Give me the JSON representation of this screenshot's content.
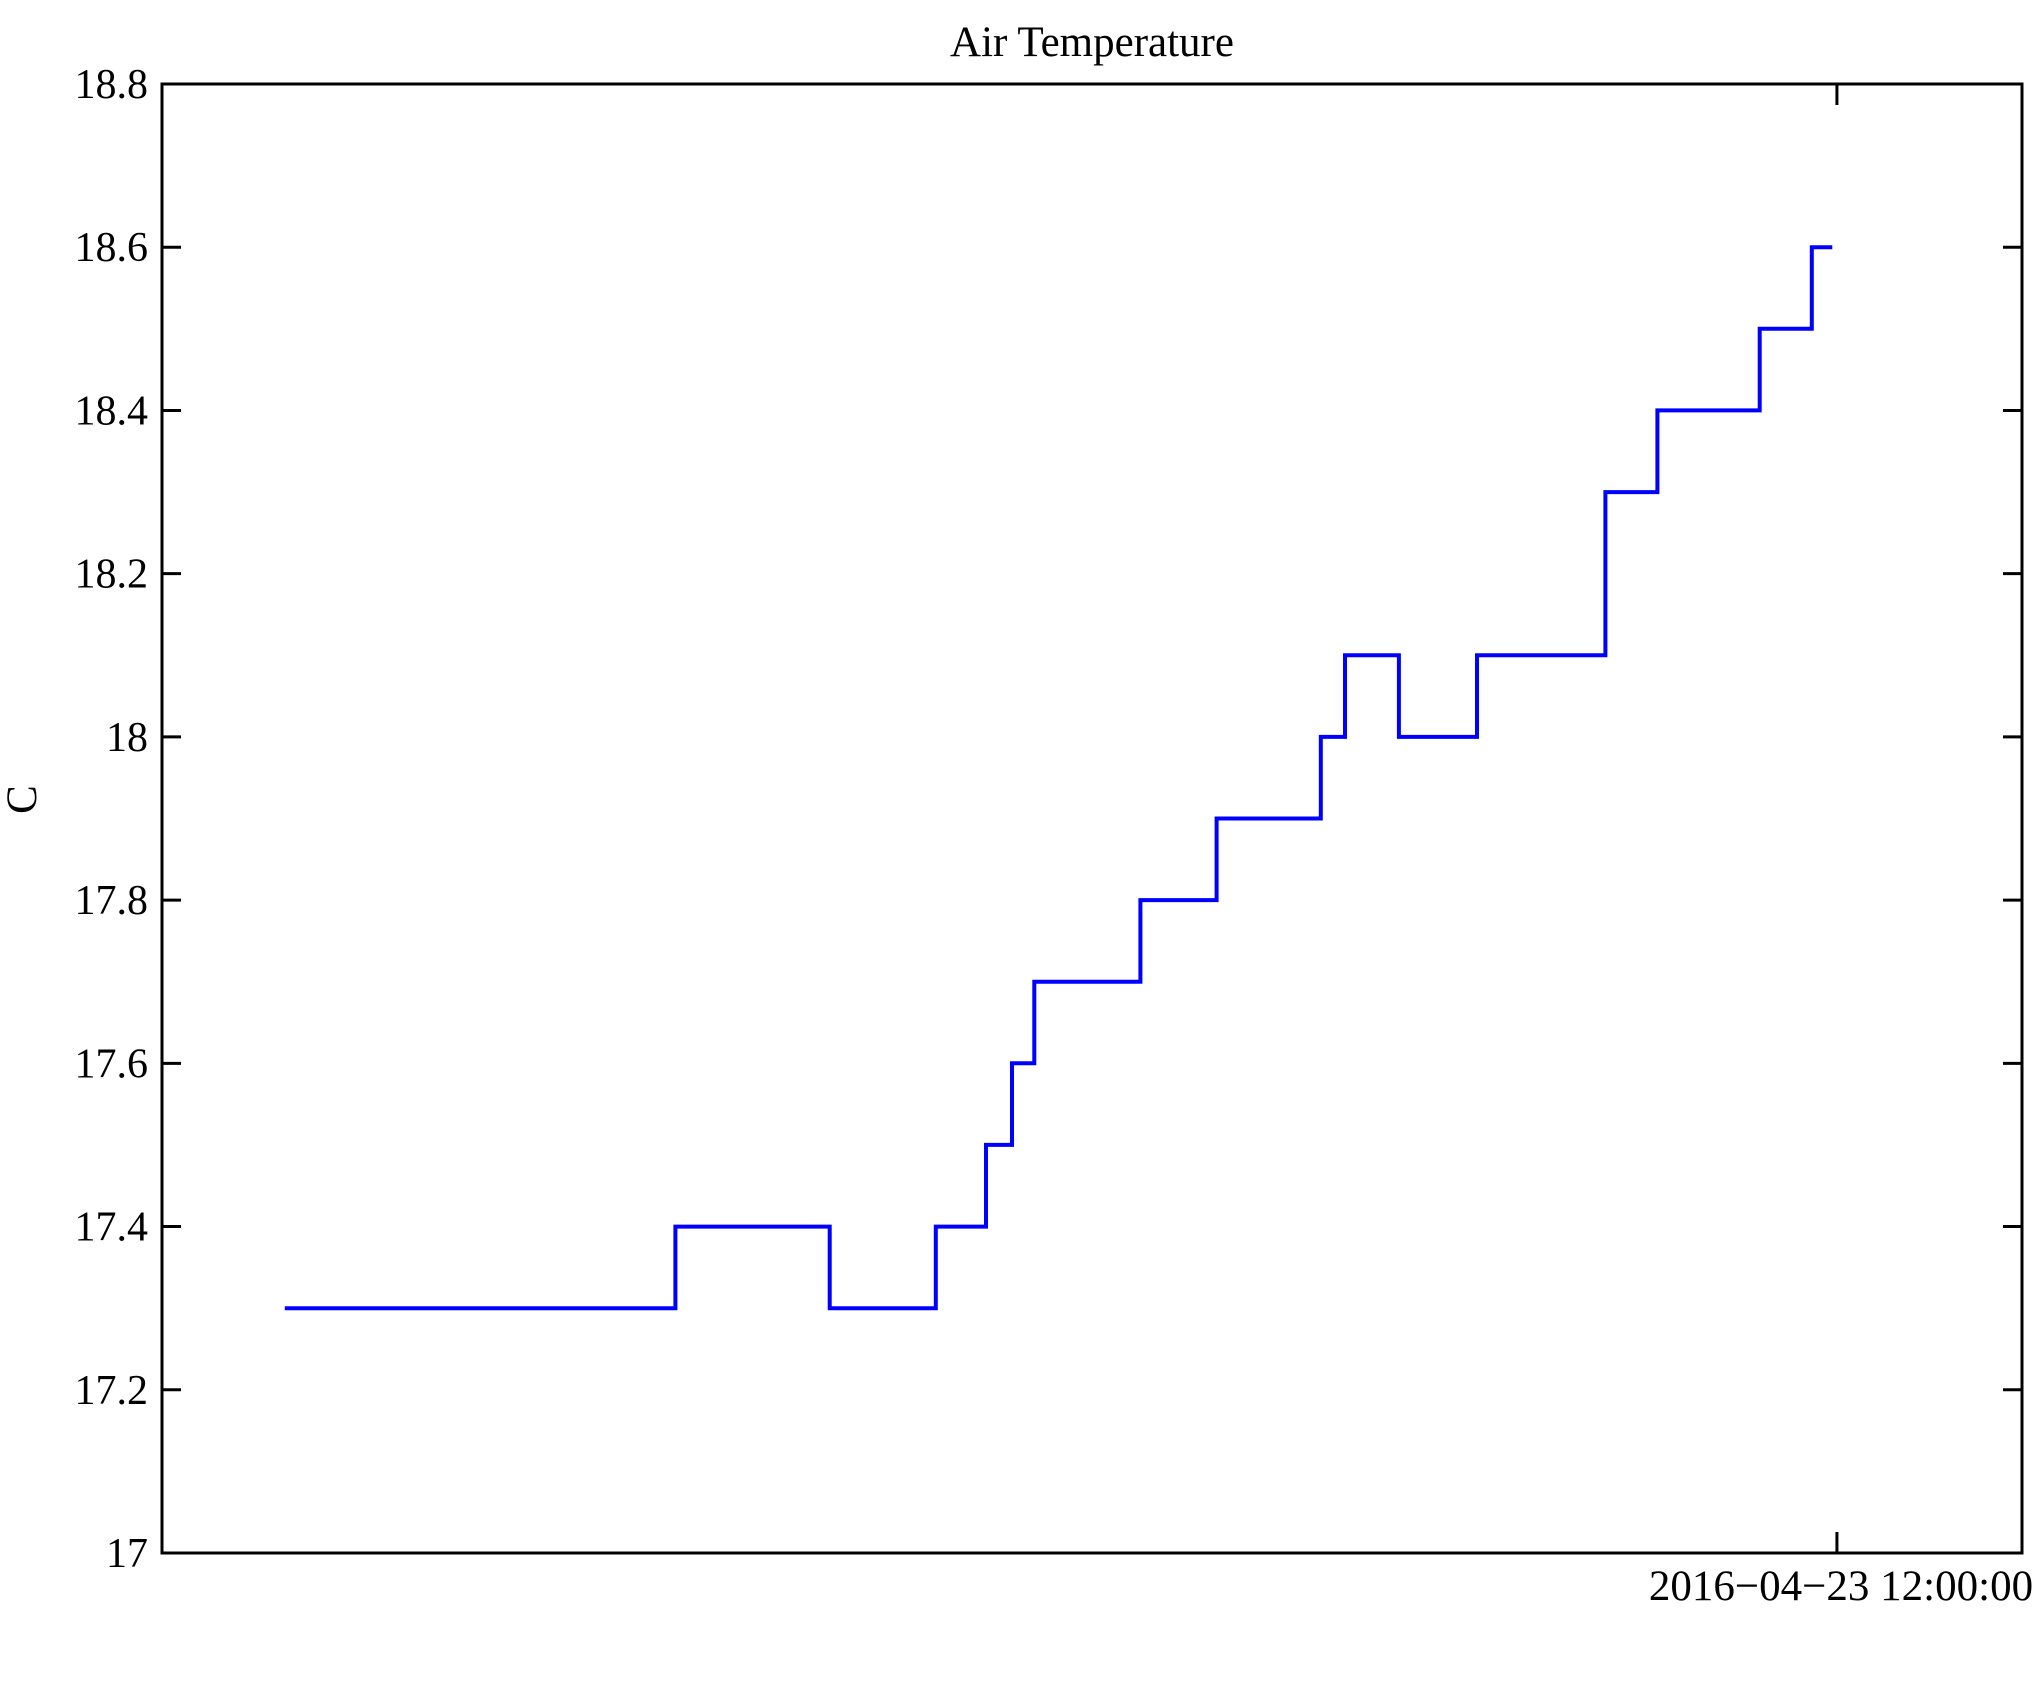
{
  "figure": {
    "title": "Air Temperature",
    "background_color": "#FFFFFF",
    "axis_color": "#000000"
  },
  "chart_data": {
    "type": "line",
    "line_style": "step",
    "title": "Air Temperature",
    "xlabel": "",
    "ylabel": "C",
    "ylim": [
      17,
      18.8
    ],
    "grid": false,
    "legend_position": "none",
    "y_ticks": [
      17,
      17.2,
      17.4,
      17.6,
      17.8,
      18,
      18.2,
      18.4,
      18.6,
      18.8
    ],
    "y_tick_labels": [
      "17",
      "17.2",
      "17.4",
      "17.6",
      "17.8",
      "18",
      "18.2",
      "18.4",
      "18.6",
      "18.8"
    ],
    "x_axis": {
      "unit": "time",
      "visible_tick": {
        "label": "2016−04−23 12:00:00",
        "position_frac": 0.9005
      }
    },
    "series": [
      {
        "name": "Air Temperature",
        "color": "#0000FF",
        "x_unit": "fraction_of_plot_width",
        "points": [
          [
            0.066,
            17.3
          ],
          [
            0.276,
            17.4
          ],
          [
            0.359,
            17.3
          ],
          [
            0.416,
            17.4
          ],
          [
            0.443,
            17.5
          ],
          [
            0.457,
            17.6
          ],
          [
            0.469,
            17.7
          ],
          [
            0.526,
            17.8
          ],
          [
            0.567,
            17.9
          ],
          [
            0.623,
            18.0
          ],
          [
            0.636,
            18.1
          ],
          [
            0.665,
            18.0
          ],
          [
            0.707,
            18.1
          ],
          [
            0.776,
            18.3
          ],
          [
            0.804,
            18.4
          ],
          [
            0.859,
            18.5
          ],
          [
            0.887,
            18.6
          ]
        ],
        "end_frac": 0.898
      }
    ]
  }
}
